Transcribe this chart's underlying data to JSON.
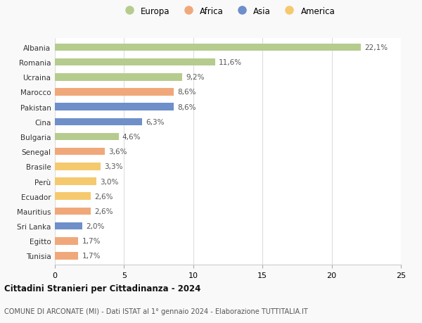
{
  "categories": [
    "Albania",
    "Romania",
    "Ucraina",
    "Marocco",
    "Pakistan",
    "Cina",
    "Bulgaria",
    "Senegal",
    "Brasile",
    "Perù",
    "Ecuador",
    "Mauritius",
    "Sri Lanka",
    "Egitto",
    "Tunisia"
  ],
  "values": [
    22.1,
    11.6,
    9.2,
    8.6,
    8.6,
    6.3,
    4.6,
    3.6,
    3.3,
    3.0,
    2.6,
    2.6,
    2.0,
    1.7,
    1.7
  ],
  "labels": [
    "22,1%",
    "11,6%",
    "9,2%",
    "8,6%",
    "8,6%",
    "6,3%",
    "4,6%",
    "3,6%",
    "3,3%",
    "3,0%",
    "2,6%",
    "2,6%",
    "2,0%",
    "1,7%",
    "1,7%"
  ],
  "continents": [
    "Europa",
    "Europa",
    "Europa",
    "Africa",
    "Asia",
    "Asia",
    "Europa",
    "Africa",
    "America",
    "America",
    "America",
    "Africa",
    "Asia",
    "Africa",
    "Africa"
  ],
  "colors": {
    "Europa": "#b5cc8e",
    "Africa": "#f0a87a",
    "Asia": "#6e8fc9",
    "America": "#f5c96e"
  },
  "legend_order": [
    "Europa",
    "Africa",
    "Asia",
    "America"
  ],
  "title1": "Cittadini Stranieri per Cittadinanza - 2024",
  "title2": "COMUNE DI ARCONATE (MI) - Dati ISTAT al 1° gennaio 2024 - Elaborazione TUTTITALIA.IT",
  "xlim": [
    0,
    25
  ],
  "xticks": [
    0,
    5,
    10,
    15,
    20,
    25
  ],
  "background_color": "#f9f9f9",
  "bar_background": "#ffffff"
}
